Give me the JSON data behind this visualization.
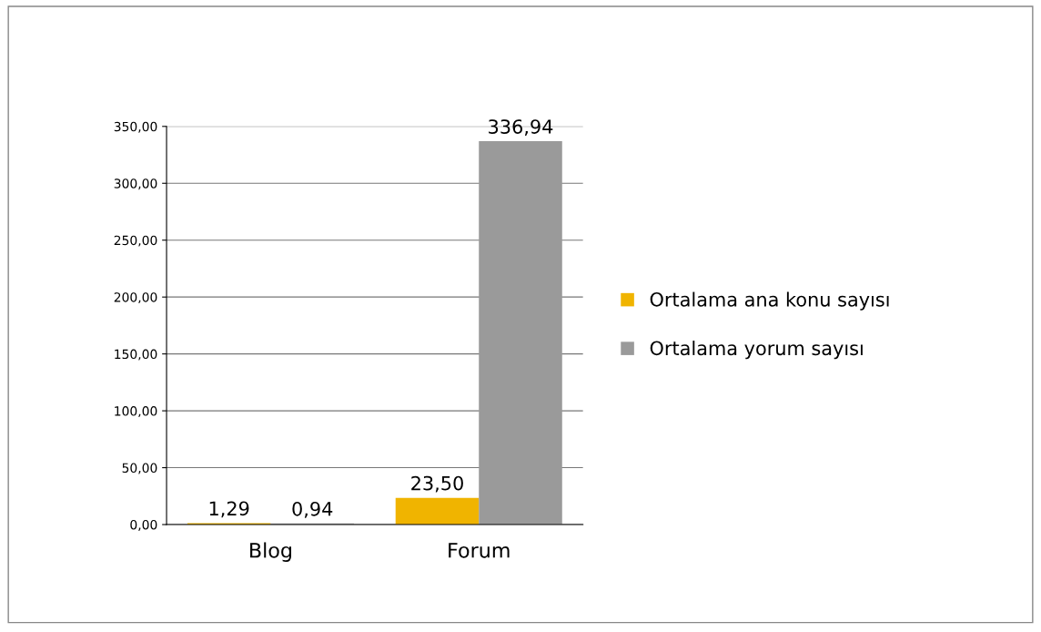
{
  "chart_data": {
    "type": "bar",
    "categories": [
      "Blog",
      "Forum"
    ],
    "series": [
      {
        "name": "Ortalama ana konu sayısı",
        "color": "#f0b400",
        "values": [
          1.29,
          23.5
        ],
        "value_labels": [
          "1,29",
          "23,50"
        ]
      },
      {
        "name": "Ortalama yorum sayısı",
        "color": "#9a9a9a",
        "values": [
          0.94,
          336.94
        ],
        "value_labels": [
          "0,94",
          "336,94"
        ]
      }
    ],
    "ylim": [
      0,
      350
    ],
    "yticks": [
      {
        "value": 0,
        "label": "0,00"
      },
      {
        "value": 50,
        "label": "50,00"
      },
      {
        "value": 100,
        "label": "100,00"
      },
      {
        "value": 150,
        "label": "150,00"
      },
      {
        "value": 200,
        "label": "200,00"
      },
      {
        "value": 250,
        "label": "250,00"
      },
      {
        "value": 300,
        "label": "300,00"
      },
      {
        "value": 350,
        "label": "350,00"
      }
    ],
    "grid": "y",
    "legend": "right"
  }
}
